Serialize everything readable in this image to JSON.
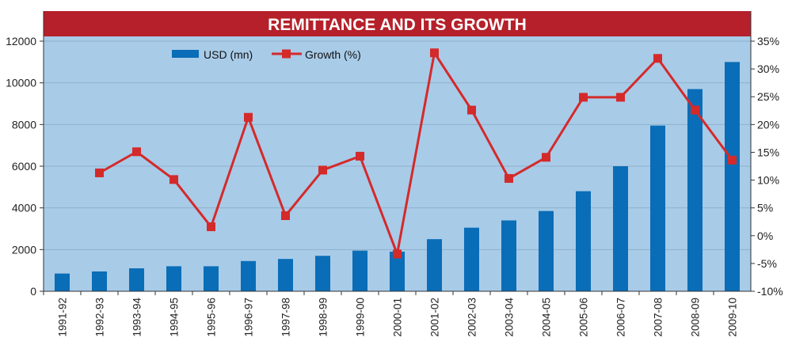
{
  "chart_data": {
    "type": "bar+line",
    "title": "REMITTANCE AND ITS GROWTH",
    "categories": [
      "1991-92",
      "1992-93",
      "1993-94",
      "1994-95",
      "1995-96",
      "1996-97",
      "1997-98",
      "1998-99",
      "1999-00",
      "2000-01",
      "2001-02",
      "2002-03",
      "2003-04",
      "2004-05",
      "2005-06",
      "2006-07",
      "2007-08",
      "2008-09",
      "2009-10"
    ],
    "series": [
      {
        "name": "USD (mn)",
        "type": "bar",
        "axis": "left",
        "color": "#0a6db7",
        "values": [
          850,
          950,
          1100,
          1200,
          1200,
          1450,
          1550,
          1700,
          1950,
          1900,
          2500,
          3050,
          3400,
          3850,
          4800,
          6000,
          7950,
          9700,
          11000
        ]
      },
      {
        "name": "Growth (%)",
        "type": "line",
        "axis": "right",
        "color": "#d42a2a",
        "values": [
          null,
          11.3,
          15.1,
          10.1,
          1.6,
          21.3,
          3.6,
          11.8,
          14.3,
          -3.3,
          32.9,
          22.6,
          10.3,
          14.1,
          24.9,
          24.9,
          31.9,
          22.6,
          13.6
        ]
      }
    ],
    "y_left": {
      "ylim": [
        0,
        12000
      ],
      "ticks": [
        "0",
        "2000",
        "4000",
        "6000",
        "8000",
        "10000",
        "12000"
      ]
    },
    "y_right": {
      "ylim": [
        -10,
        35
      ],
      "ticks": [
        "-10%",
        "-5%",
        "0%",
        "5%",
        "10%",
        "15%",
        "20%",
        "25%",
        "30%",
        "35%"
      ]
    },
    "grid": true,
    "legend": "top-left",
    "colors": {
      "background": "#a8cbe8",
      "title_bar": "#b5202a",
      "grid": "#8fb0cc"
    }
  }
}
